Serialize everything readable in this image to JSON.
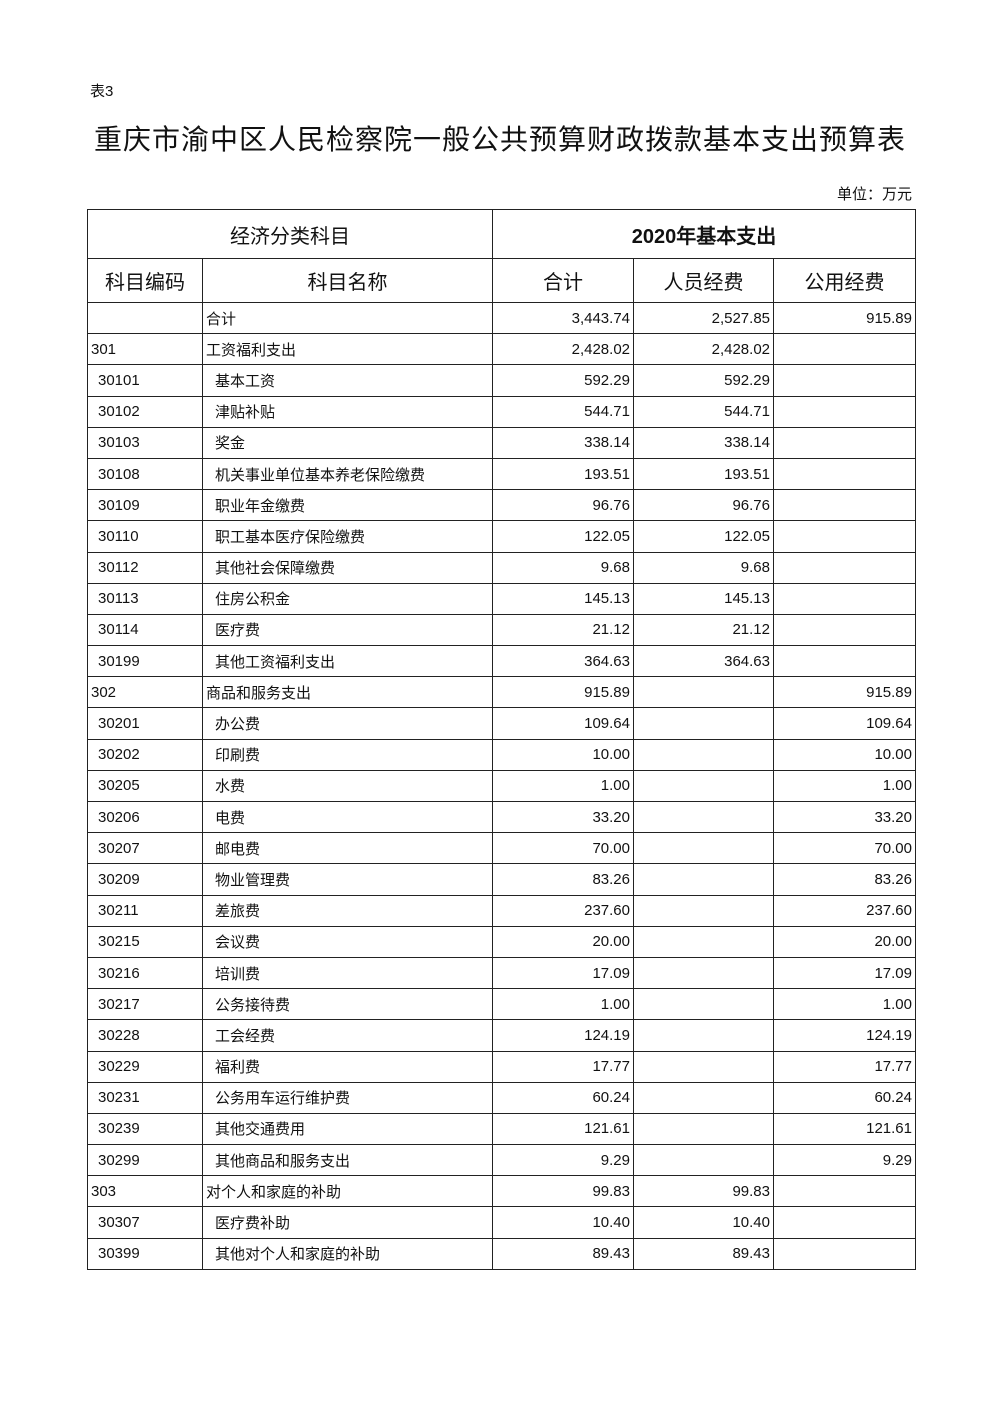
{
  "doc": {
    "table_no": "表3",
    "title": "重庆市渝中区人民检察院一般公共预算财政拨款基本支出预算表",
    "unit": "单位：万元"
  },
  "header": {
    "group_left": "经济分类科目",
    "group_right": "2020年基本支出",
    "code": "科目编码",
    "name": "科目名称",
    "total": "合计",
    "personnel": "人员经费",
    "public": "公用经费"
  },
  "rows": [
    {
      "code": "",
      "name": "合计",
      "total": "3,443.74",
      "personnel": "2,527.85",
      "public": "915.89",
      "level": 0
    },
    {
      "code": "301",
      "name": "工资福利支出",
      "total": "2,428.02",
      "personnel": "2,428.02",
      "public": "",
      "level": 0
    },
    {
      "code": "30101",
      "name": "基本工资",
      "total": "592.29",
      "personnel": "592.29",
      "public": "",
      "level": 1
    },
    {
      "code": "30102",
      "name": "津贴补贴",
      "total": "544.71",
      "personnel": "544.71",
      "public": "",
      "level": 1
    },
    {
      "code": "30103",
      "name": "奖金",
      "total": "338.14",
      "personnel": "338.14",
      "public": "",
      "level": 1
    },
    {
      "code": "30108",
      "name": "机关事业单位基本养老保险缴费",
      "total": "193.51",
      "personnel": "193.51",
      "public": "",
      "level": 1
    },
    {
      "code": "30109",
      "name": "职业年金缴费",
      "total": "96.76",
      "personnel": "96.76",
      "public": "",
      "level": 1
    },
    {
      "code": "30110",
      "name": "职工基本医疗保险缴费",
      "total": "122.05",
      "personnel": "122.05",
      "public": "",
      "level": 1
    },
    {
      "code": "30112",
      "name": "其他社会保障缴费",
      "total": "9.68",
      "personnel": "9.68",
      "public": "",
      "level": 1
    },
    {
      "code": "30113",
      "name": "住房公积金",
      "total": "145.13",
      "personnel": "145.13",
      "public": "",
      "level": 1
    },
    {
      "code": "30114",
      "name": "医疗费",
      "total": "21.12",
      "personnel": "21.12",
      "public": "",
      "level": 1
    },
    {
      "code": "30199",
      "name": "其他工资福利支出",
      "total": "364.63",
      "personnel": "364.63",
      "public": "",
      "level": 1
    },
    {
      "code": "302",
      "name": "商品和服务支出",
      "total": "915.89",
      "personnel": "",
      "public": "915.89",
      "level": 0
    },
    {
      "code": "30201",
      "name": "办公费",
      "total": "109.64",
      "personnel": "",
      "public": "109.64",
      "level": 1
    },
    {
      "code": "30202",
      "name": "印刷费",
      "total": "10.00",
      "personnel": "",
      "public": "10.00",
      "level": 1
    },
    {
      "code": "30205",
      "name": "水费",
      "total": "1.00",
      "personnel": "",
      "public": "1.00",
      "level": 1
    },
    {
      "code": "30206",
      "name": "电费",
      "total": "33.20",
      "personnel": "",
      "public": "33.20",
      "level": 1
    },
    {
      "code": "30207",
      "name": "邮电费",
      "total": "70.00",
      "personnel": "",
      "public": "70.00",
      "level": 1
    },
    {
      "code": "30209",
      "name": "物业管理费",
      "total": "83.26",
      "personnel": "",
      "public": "83.26",
      "level": 1
    },
    {
      "code": "30211",
      "name": "差旅费",
      "total": "237.60",
      "personnel": "",
      "public": "237.60",
      "level": 1
    },
    {
      "code": "30215",
      "name": "会议费",
      "total": "20.00",
      "personnel": "",
      "public": "20.00",
      "level": 1
    },
    {
      "code": "30216",
      "name": "培训费",
      "total": "17.09",
      "personnel": "",
      "public": "17.09",
      "level": 1
    },
    {
      "code": "30217",
      "name": "公务接待费",
      "total": "1.00",
      "personnel": "",
      "public": "1.00",
      "level": 1
    },
    {
      "code": "30228",
      "name": "工会经费",
      "total": "124.19",
      "personnel": "",
      "public": "124.19",
      "level": 1
    },
    {
      "code": "30229",
      "name": "福利费",
      "total": "17.77",
      "personnel": "",
      "public": "17.77",
      "level": 1
    },
    {
      "code": "30231",
      "name": "公务用车运行维护费",
      "total": "60.24",
      "personnel": "",
      "public": "60.24",
      "level": 1
    },
    {
      "code": "30239",
      "name": "其他交通费用",
      "total": "121.61",
      "personnel": "",
      "public": "121.61",
      "level": 1
    },
    {
      "code": "30299",
      "name": "其他商品和服务支出",
      "total": "9.29",
      "personnel": "",
      "public": "9.29",
      "level": 1
    },
    {
      "code": "303",
      "name": "对个人和家庭的补助",
      "total": "99.83",
      "personnel": "99.83",
      "public": "",
      "level": 0
    },
    {
      "code": "30307",
      "name": "医疗费补助",
      "total": "10.40",
      "personnel": "10.40",
      "public": "",
      "level": 1
    },
    {
      "code": "30399",
      "name": "其他对个人和家庭的补助",
      "total": "89.43",
      "personnel": "89.43",
      "public": "",
      "level": 1
    }
  ]
}
